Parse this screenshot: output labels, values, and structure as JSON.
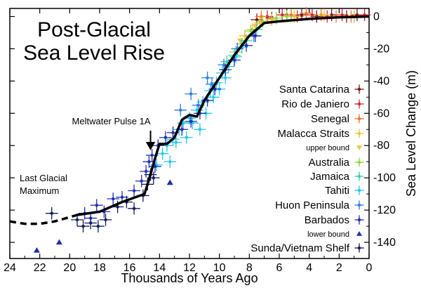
{
  "chart_data": {
    "type": "scatter",
    "title_lines": [
      "Post-Glacial",
      "Sea Level Rise"
    ],
    "xlabel": "Thousands of Years Ago",
    "ylabel": "Sea Level Change (m)",
    "xlim": [
      24,
      0
    ],
    "ylim": [
      -150,
      5
    ],
    "x_ticks": [
      24,
      22,
      20,
      18,
      16,
      14,
      12,
      10,
      8,
      6,
      4,
      2,
      0
    ],
    "y_ticks": [
      0,
      -20,
      -40,
      -60,
      -80,
      -100,
      -120,
      -140
    ],
    "grid": false,
    "legend_placement": "right",
    "annotations": [
      {
        "id": "meltwater",
        "label": "Meltwater Pulse 1A",
        "x": 14.6,
        "y": -88
      },
      {
        "id": "lgm",
        "label_lines": [
          "Last Glacial",
          "Maximum"
        ]
      }
    ],
    "trend_line": {
      "solid": [
        [
          19.5,
          -123
        ],
        [
          18,
          -121
        ],
        [
          16.5,
          -115
        ],
        [
          15,
          -110
        ],
        [
          14.7,
          -101
        ],
        [
          14.3,
          -88
        ],
        [
          14,
          -79
        ],
        [
          13.5,
          -79
        ],
        [
          13,
          -75
        ],
        [
          12.5,
          -64
        ],
        [
          12,
          -61
        ],
        [
          11.5,
          -62
        ],
        [
          11,
          -52
        ],
        [
          10,
          -38
        ],
        [
          9,
          -24
        ],
        [
          8,
          -12
        ],
        [
          7,
          -4
        ],
        [
          6,
          -3
        ],
        [
          4,
          -1.5
        ],
        [
          2,
          -0.5
        ],
        [
          0,
          0
        ]
      ],
      "dashed": [
        [
          24,
          -127
        ],
        [
          23,
          -128.5
        ],
        [
          22,
          -128.5
        ],
        [
          21,
          -127
        ],
        [
          19.5,
          -123
        ]
      ]
    },
    "series": [
      {
        "name": "Santa Catarina",
        "color": "#7a1a1a",
        "marker": "cross",
        "points": [
          [
            7.5,
            -2
          ],
          [
            6.5,
            -1
          ],
          [
            5.5,
            1
          ],
          [
            4.5,
            1
          ],
          [
            3.5,
            0
          ],
          [
            2.5,
            1
          ],
          [
            1.5,
            0
          ],
          [
            0.8,
            1
          ]
        ]
      },
      {
        "name": "Rio de Janiero",
        "color": "#d22b2b",
        "marker": "cross",
        "points": [
          [
            6.8,
            0
          ],
          [
            5.8,
            1
          ],
          [
            4.8,
            0
          ],
          [
            3.8,
            1
          ],
          [
            2.8,
            0
          ],
          [
            1.8,
            1
          ],
          [
            1,
            0
          ],
          [
            0.3,
            1
          ]
        ]
      },
      {
        "name": "Senegal",
        "color": "#f07320",
        "marker": "cross",
        "points": [
          [
            7.2,
            0
          ],
          [
            5.2,
            1
          ],
          [
            4.2,
            2
          ],
          [
            3.2,
            1
          ],
          [
            2.2,
            0
          ],
          [
            1.2,
            0
          ]
        ]
      },
      {
        "name": "Malacca Straits",
        "color": "#f2c23a",
        "marker": "cross",
        "points": [
          [
            8.3,
            -12
          ],
          [
            7.8,
            -8
          ],
          [
            7.3,
            -4
          ],
          [
            6.5,
            -2
          ],
          [
            5,
            0
          ],
          [
            3,
            1
          ],
          [
            1,
            0
          ]
        ]
      },
      {
        "name": "upper bound",
        "color": "#f2c23a",
        "marker": "triangle-down",
        "points": [
          [
            8.6,
            -15
          ],
          [
            7.6,
            -6
          ]
        ]
      },
      {
        "name": "Australia",
        "color": "#8bd83a",
        "marker": "cross",
        "points": [
          [
            8.9,
            -22
          ],
          [
            8.5,
            -17
          ],
          [
            7.9,
            -9
          ],
          [
            7.1,
            -3
          ],
          [
            6.2,
            -1
          ],
          [
            5.5,
            0
          ]
        ]
      },
      {
        "name": "Jamaica",
        "color": "#3ad0a0",
        "marker": "cross",
        "points": [
          [
            9.5,
            -28
          ],
          [
            9,
            -24
          ],
          [
            8.2,
            -15
          ],
          [
            7.5,
            -8
          ]
        ]
      },
      {
        "name": "Tahiti",
        "color": "#22c8f0",
        "marker": "cross",
        "points": [
          [
            13.8,
            -85
          ],
          [
            13.5,
            -80
          ],
          [
            13.1,
            -76
          ],
          [
            12.7,
            -70
          ],
          [
            12.4,
            -66
          ],
          [
            12,
            -63
          ],
          [
            11.5,
            -58
          ],
          [
            11.1,
            -53
          ],
          [
            10.6,
            -46
          ],
          [
            10.2,
            -41
          ],
          [
            9.8,
            -35
          ],
          [
            9.4,
            -31
          ],
          [
            8.9,
            -25
          ],
          [
            8.5,
            -19
          ],
          [
            14.2,
            -92
          ],
          [
            12.9,
            -78
          ],
          [
            11.8,
            -66
          ],
          [
            10.9,
            -60
          ],
          [
            10.4,
            -50
          ],
          [
            9.6,
            -38
          ],
          [
            13.3,
            -90
          ],
          [
            12.2,
            -75
          ],
          [
            11.3,
            -70
          ],
          [
            10,
            -45
          ]
        ]
      },
      {
        "name": "Huon Peninsula",
        "color": "#2f7ce8",
        "marker": "cross",
        "points": [
          [
            12.6,
            -58
          ],
          [
            11.4,
            -55
          ],
          [
            10.5,
            -42
          ],
          [
            9.7,
            -30
          ],
          [
            8.8,
            -20
          ],
          [
            7.7,
            -12
          ],
          [
            11.9,
            -48
          ],
          [
            10.8,
            -38
          ]
        ]
      },
      {
        "name": "Barbados",
        "color": "#1f2fb0",
        "marker": "cross",
        "points": [
          [
            19,
            -122
          ],
          [
            18.6,
            -125
          ],
          [
            18.2,
            -117
          ],
          [
            17.7,
            -121
          ],
          [
            17.1,
            -113
          ],
          [
            16.5,
            -112
          ],
          [
            15.7,
            -108
          ],
          [
            15.2,
            -102
          ],
          [
            14.9,
            -96
          ],
          [
            14.7,
            -90
          ],
          [
            14.5,
            -86
          ],
          [
            14.3,
            -93
          ],
          [
            14.1,
            -80
          ],
          [
            13.6,
            -75
          ],
          [
            13.1,
            -72
          ],
          [
            12.5,
            -70
          ],
          [
            11.9,
            -65
          ],
          [
            11.3,
            -60
          ],
          [
            10.8,
            -52
          ],
          [
            10.3,
            -45
          ],
          [
            9.6,
            -33
          ],
          [
            9,
            -27
          ],
          [
            8.2,
            -18
          ],
          [
            7.6,
            -12
          ]
        ]
      },
      {
        "name": "lower bound",
        "color": "#1f2fb0",
        "marker": "triangle-up",
        "points": [
          [
            22.2,
            -145
          ],
          [
            20.7,
            -140
          ],
          [
            13.3,
            -103
          ]
        ]
      },
      {
        "name": "Sunda/Vietnam Shelf",
        "color": "#101a5a",
        "marker": "cross",
        "points": [
          [
            21.2,
            -122
          ],
          [
            19.5,
            -126
          ],
          [
            19.1,
            -130
          ],
          [
            18.6,
            -128
          ],
          [
            18.1,
            -130
          ],
          [
            17.6,
            -126
          ],
          [
            16.8,
            -118
          ],
          [
            16.2,
            -115
          ],
          [
            15.7,
            -119
          ],
          [
            15.1,
            -111
          ],
          [
            14.8,
            -104
          ],
          [
            14.6,
            -98
          ],
          [
            14.4,
            -100
          ]
        ]
      }
    ]
  }
}
